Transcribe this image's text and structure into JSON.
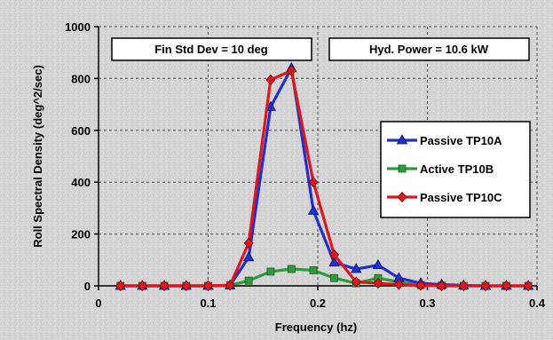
{
  "chart_data": {
    "type": "line",
    "xlabel": "Frequency (hz)",
    "ylabel": "Roll Spectral Density (deg^2/sec)",
    "xlim": [
      0,
      0.4
    ],
    "ylim": [
      0,
      1000
    ],
    "x_ticks": [
      "0",
      "0.1",
      "0.2",
      "0.3",
      "0.4"
    ],
    "y_ticks": [
      "0",
      "200",
      "400",
      "600",
      "800",
      "1000"
    ],
    "grid": true,
    "legend_position": "right",
    "annotations": [
      "Fin Std Dev = 10 deg",
      "Hyd. Power = 10.6 kW"
    ],
    "series": [
      {
        "name": "Passive TP10A",
        "color": "#1f2fd0",
        "marker": "triangle",
        "x": [
          0.02,
          0.04,
          0.06,
          0.08,
          0.1,
          0.12,
          0.137,
          0.157,
          0.176,
          0.196,
          0.215,
          0.235,
          0.255,
          0.274,
          0.294,
          0.313,
          0.333,
          0.353,
          0.372,
          0.392
        ],
        "y": [
          0,
          0,
          0,
          0,
          0,
          2,
          110,
          690,
          840,
          290,
          90,
          65,
          80,
          30,
          10,
          5,
          2,
          0,
          0,
          0
        ]
      },
      {
        "name": "Active TP10B",
        "color": "#2e9a3c",
        "marker": "square",
        "x": [
          0.02,
          0.04,
          0.06,
          0.08,
          0.1,
          0.12,
          0.137,
          0.157,
          0.176,
          0.196,
          0.215,
          0.235,
          0.255,
          0.274,
          0.294,
          0.313,
          0.333,
          0.353,
          0.372,
          0.392
        ],
        "y": [
          0,
          0,
          0,
          0,
          0,
          2,
          20,
          55,
          65,
          60,
          30,
          10,
          30,
          15,
          3,
          1,
          0,
          0,
          0,
          0
        ]
      },
      {
        "name": "Passive TP10C",
        "color": "#e0161c",
        "marker": "diamond",
        "x": [
          0.02,
          0.04,
          0.06,
          0.08,
          0.1,
          0.12,
          0.137,
          0.157,
          0.176,
          0.196,
          0.215,
          0.235,
          0.255,
          0.274,
          0.294,
          0.313,
          0.333,
          0.353,
          0.372,
          0.392
        ],
        "y": [
          0,
          0,
          0,
          0,
          0,
          2,
          165,
          795,
          830,
          400,
          120,
          15,
          10,
          5,
          2,
          0,
          0,
          0,
          0,
          0
        ]
      }
    ]
  }
}
